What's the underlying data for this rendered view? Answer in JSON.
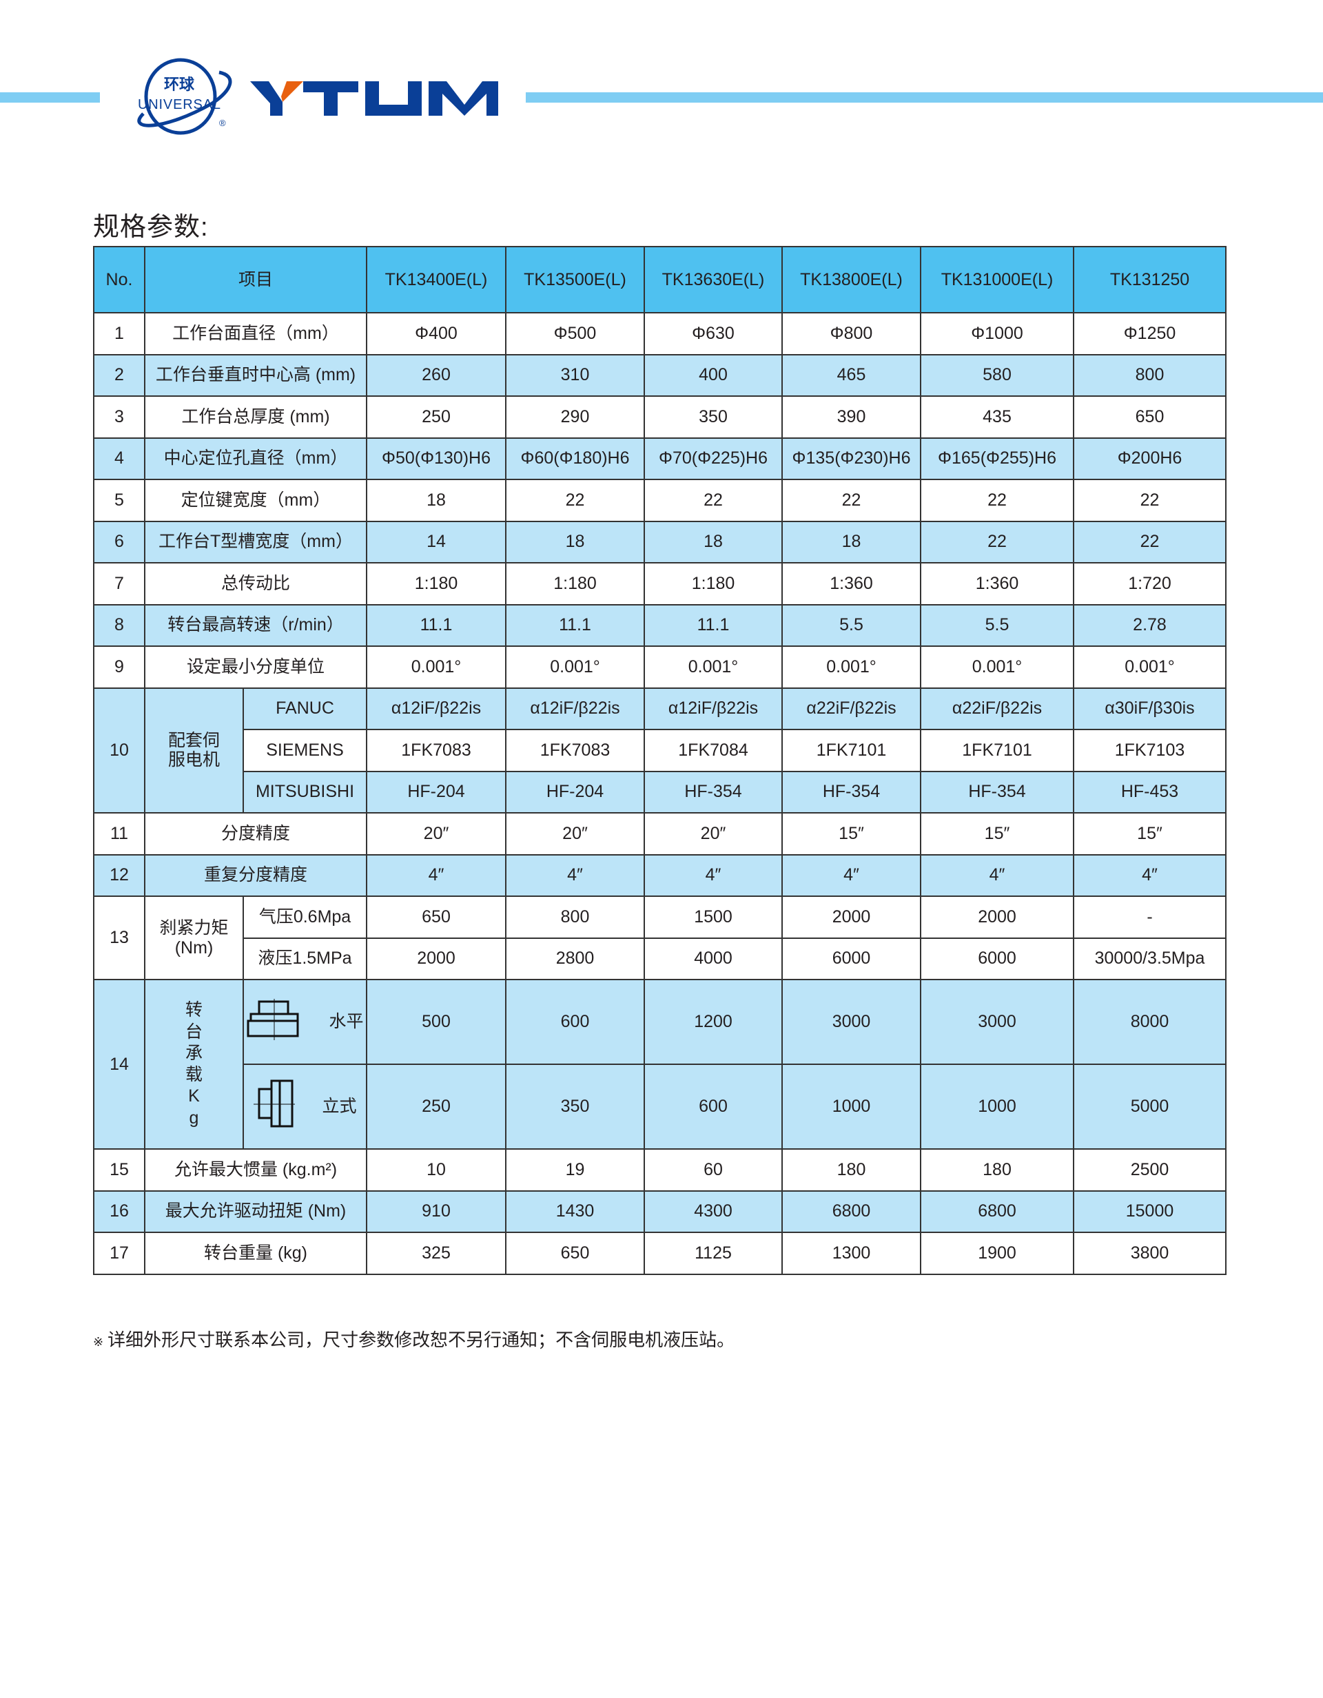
{
  "brand": {
    "logo_cn": "环球",
    "logo_en": "UNIVERSAL",
    "wordmark": "YTUM",
    "colors": {
      "bar": "#7fcdf3",
      "logo_blue": "#0a3f97",
      "logo_orange": "#e8600f",
      "header": "#4fc1f0",
      "row_alt": "#bce4f8"
    }
  },
  "title": "规格参数:",
  "table": {
    "headers": [
      "No.",
      "项目",
      "TK13400E(L)",
      "TK13500E(L)",
      "TK13630E(L)",
      "TK13800E(L)",
      "TK131000E(L)",
      "TK131250"
    ],
    "rows": [
      {
        "no": "1",
        "item": "工作台面直径（mm）",
        "values": [
          "Φ400",
          "Φ500",
          "Φ630",
          "Φ800",
          "Φ1000",
          "Φ1250"
        ]
      },
      {
        "no": "2",
        "item": "工作台垂直时中心高 (mm)",
        "values": [
          "260",
          "310",
          "400",
          "465",
          "580",
          "800"
        ]
      },
      {
        "no": "3",
        "item": "工作台总厚度 (mm)",
        "values": [
          "250",
          "290",
          "350",
          "390",
          "435",
          "650"
        ]
      },
      {
        "no": "4",
        "item": "中心定位孔直径（mm）",
        "values": [
          "Φ50(Φ130)H6",
          "Φ60(Φ180)H6",
          "Φ70(Φ225)H6",
          "Φ135(Φ230)H6",
          "Φ165(Φ255)H6",
          "Φ200H6"
        ]
      },
      {
        "no": "5",
        "item": "定位键宽度（mm）",
        "values": [
          "18",
          "22",
          "22",
          "22",
          "22",
          "22"
        ]
      },
      {
        "no": "6",
        "item": "工作台T型槽宽度（mm）",
        "values": [
          "14",
          "18",
          "18",
          "18",
          "22",
          "22"
        ]
      },
      {
        "no": "7",
        "item": "总传动比",
        "values": [
          "1:180",
          "1:180",
          "1:180",
          "1:360",
          "1:360",
          "1:720"
        ]
      },
      {
        "no": "8",
        "item": "转台最高转速（r/min）",
        "values": [
          "11.1",
          "11.1",
          "11.1",
          "5.5",
          "5.5",
          "2.78"
        ]
      },
      {
        "no": "9",
        "item": "设定最小分度单位",
        "values": [
          "0.001°",
          "0.001°",
          "0.001°",
          "0.001°",
          "0.001°",
          "0.001°"
        ]
      },
      {
        "no": "10",
        "item": "配套伺服电机",
        "sub": [
          {
            "label": "FANUC",
            "values": [
              "α12iF/β22is",
              "α12iF/β22is",
              "α12iF/β22is",
              "α22iF/β22is",
              "α22iF/β22is",
              "α30iF/β30is"
            ]
          },
          {
            "label": "SIEMENS",
            "values": [
              "1FK7083",
              "1FK7083",
              "1FK7084",
              "1FK7101",
              "1FK7101",
              "1FK7103"
            ]
          },
          {
            "label": "MITSUBISHI",
            "values": [
              "HF-204",
              "HF-204",
              "HF-354",
              "HF-354",
              "HF-354",
              "HF-453"
            ]
          }
        ]
      },
      {
        "no": "11",
        "item": "分度精度",
        "values": [
          "20″",
          "20″",
          "20″",
          "15″",
          "15″",
          "15″"
        ]
      },
      {
        "no": "12",
        "item": "重复分度精度",
        "values": [
          "4″",
          "4″",
          "4″",
          "4″",
          "4″",
          "4″"
        ]
      },
      {
        "no": "13",
        "item": "刹紧力矩\n(Nm)",
        "sub": [
          {
            "label": "气压0.6Mpa",
            "values": [
              "650",
              "800",
              "1500",
              "2000",
              "2000",
              "-"
            ]
          },
          {
            "label": "液压1.5MPa",
            "values": [
              "2000",
              "2800",
              "4000",
              "6000",
              "6000",
              "30000/3.5Mpa"
            ]
          }
        ]
      },
      {
        "no": "14",
        "item": "转台承载Kg",
        "sub": [
          {
            "label": "水平",
            "icon": "horizontal-mount-icon",
            "values": [
              "500",
              "600",
              "1200",
              "3000",
              "3000",
              "8000"
            ]
          },
          {
            "label": "立式",
            "icon": "vertical-mount-icon",
            "values": [
              "250",
              "350",
              "600",
              "1000",
              "1000",
              "5000"
            ]
          }
        ]
      },
      {
        "no": "15",
        "item": "允许最大惯量 (kg.m²)",
        "values": [
          "10",
          "19",
          "60",
          "180",
          "180",
          "2500"
        ]
      },
      {
        "no": "16",
        "item": "最大允许驱动扭矩 (Nm)",
        "values": [
          "910",
          "1430",
          "4300",
          "6800",
          "6800",
          "15000"
        ]
      },
      {
        "no": "17",
        "item": "转台重量 (kg)",
        "values": [
          "325",
          "650",
          "1125",
          "1300",
          "1900",
          "3800"
        ]
      }
    ]
  },
  "note": {
    "mark": "※",
    "text": "详细外形尺寸联系本公司，尺寸参数修改恕不另行通知；不含伺服电机液压站。"
  }
}
